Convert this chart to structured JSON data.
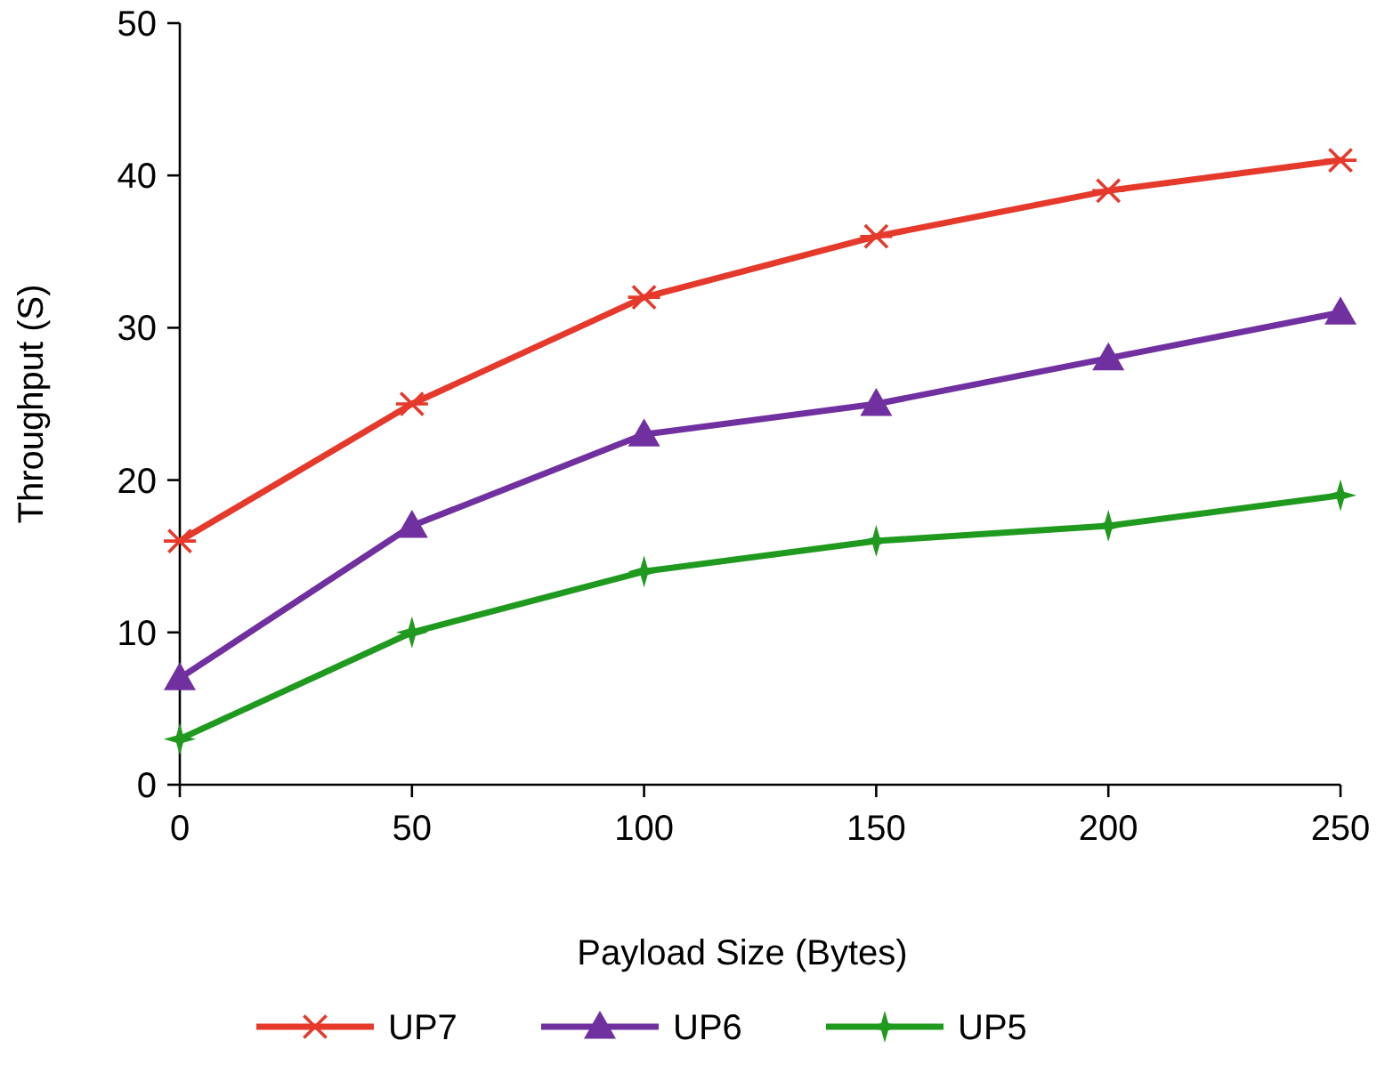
{
  "chart_data": {
    "type": "line",
    "xlabel": "Payload Size (Bytes)",
    "ylabel": "Throughput (S)",
    "x": [
      0,
      50,
      100,
      150,
      200,
      250
    ],
    "xlim": [
      0,
      250
    ],
    "xticks": [
      0,
      50,
      100,
      150,
      200,
      250
    ],
    "ylim": [
      0,
      50
    ],
    "yticks": [
      0,
      10,
      20,
      30,
      40,
      50
    ],
    "grid": false,
    "legend": "bottom",
    "line_style": "solid",
    "series": [
      {
        "name": "UP7",
        "color": "#e5392b",
        "marker": "cross",
        "values": [
          16,
          25,
          32,
          36,
          39,
          41
        ]
      },
      {
        "name": "UP6",
        "color": "#7030a0",
        "marker": "triangle",
        "values": [
          7,
          17,
          23,
          25,
          28,
          31
        ]
      },
      {
        "name": "UP5",
        "color": "#1f9a1f",
        "marker": "star",
        "values": [
          3,
          10,
          14,
          16,
          17,
          19
        ]
      }
    ]
  }
}
